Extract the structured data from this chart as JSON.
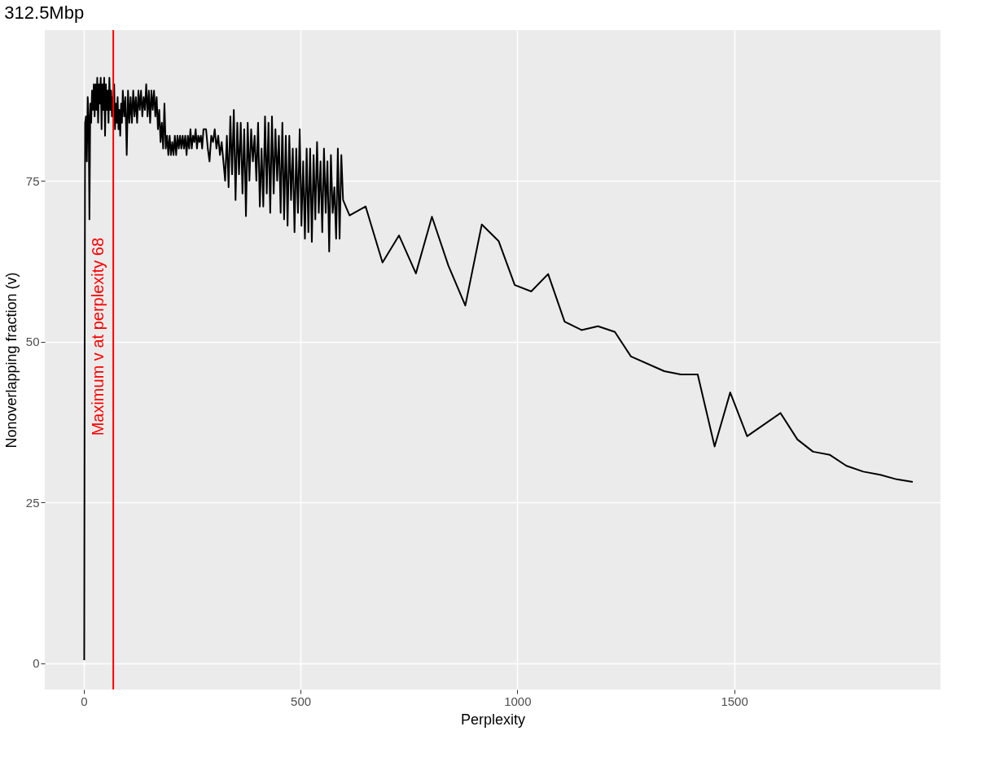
{
  "chart_data": {
    "type": "line",
    "title": "312.5Mbp",
    "xlabel": "Perplexity",
    "ylabel": "Nonoverlapping fraction (v)",
    "xlim": [
      -90,
      1976
    ],
    "ylim": [
      -4.05,
      98.4
    ],
    "xticks": [
      0,
      500,
      1000,
      1500
    ],
    "yticks": [
      0,
      25,
      50,
      75
    ],
    "grid": true,
    "line_style": "solid",
    "x": [
      1,
      2,
      3,
      5,
      7,
      9,
      11,
      13,
      15,
      17,
      19,
      21,
      23,
      25,
      27,
      29,
      31,
      33,
      35,
      37,
      39,
      41,
      43,
      45,
      47,
      49,
      51,
      53,
      55,
      57,
      59,
      61,
      63,
      65,
      67,
      68,
      70,
      72,
      74,
      76,
      78,
      80,
      82,
      84,
      86,
      88,
      90,
      93,
      96,
      99,
      102,
      105,
      108,
      111,
      114,
      117,
      120,
      123,
      126,
      129,
      132,
      135,
      138,
      141,
      144,
      147,
      150,
      153,
      156,
      159,
      162,
      165,
      168,
      171,
      174,
      177,
      180,
      183,
      186,
      189,
      192,
      195,
      198,
      201,
      204,
      207,
      210,
      213,
      216,
      219,
      222,
      225,
      228,
      231,
      234,
      237,
      240,
      243,
      246,
      249,
      252,
      255,
      258,
      261,
      264,
      267,
      270,
      273,
      276,
      282,
      286,
      290,
      294,
      298,
      302,
      306,
      310,
      314,
      318,
      322,
      326,
      330,
      334,
      338,
      342,
      346,
      350,
      354,
      358,
      362,
      366,
      370,
      374,
      378,
      382,
      386,
      390,
      394,
      398,
      402,
      406,
      410,
      414,
      418,
      422,
      426,
      430,
      434,
      438,
      442,
      446,
      450,
      454,
      458,
      462,
      466,
      470,
      474,
      478,
      482,
      486,
      490,
      494,
      498,
      502,
      506,
      510,
      514,
      518,
      522,
      526,
      530,
      534,
      538,
      542,
      546,
      550,
      554,
      558,
      562,
      566,
      570,
      574,
      578,
      582,
      586,
      590,
      594,
      598,
      613,
      650,
      689,
      727,
      766,
      803,
      841,
      880,
      918,
      957,
      994,
      1032,
      1071,
      1109,
      1148,
      1186,
      1225,
      1262,
      1339,
      1377,
      1416,
      1455,
      1491,
      1530,
      1607,
      1646,
      1682,
      1721,
      1759,
      1798,
      1837,
      1875,
      1912
    ],
    "series": [
      {
        "color": "#000000",
        "values": [
          0.5,
          50,
          84,
          85,
          78,
          88,
          85,
          69,
          87,
          84,
          89,
          86,
          90,
          85,
          90,
          86,
          91,
          84,
          90,
          87,
          91,
          83,
          90,
          86,
          91,
          82,
          90,
          86,
          89,
          84,
          91,
          86,
          89,
          85,
          88,
          86,
          90,
          83,
          87,
          84,
          88,
          83,
          86,
          82,
          87,
          84,
          89,
          85,
          88,
          79,
          89,
          84,
          88,
          84,
          89,
          85,
          88,
          84,
          89,
          86,
          89,
          85,
          88,
          86,
          90,
          85,
          89,
          84,
          89,
          86,
          89,
          85,
          88,
          83,
          86,
          81,
          84,
          80,
          87,
          80,
          82,
          79,
          82,
          79,
          81,
          79,
          82,
          79,
          82,
          80,
          82,
          80,
          82,
          80,
          82,
          79,
          82,
          80,
          83,
          80,
          82,
          81,
          83,
          80,
          82,
          81,
          82,
          80,
          83,
          83,
          80,
          78,
          82,
          81,
          83,
          80,
          82,
          79,
          81,
          78,
          75,
          82,
          74,
          85,
          76,
          86,
          72,
          84,
          76,
          84,
          73,
          83,
          69.5,
          84,
          75,
          83,
          78,
          82,
          75,
          84,
          71,
          80,
          71,
          85,
          73,
          84,
          70,
          85,
          73,
          83,
          75,
          82,
          70,
          84,
          69,
          82,
          68,
          82,
          72,
          80,
          67,
          80,
          70,
          83,
          68,
          78,
          66,
          80,
          67,
          80,
          65.5,
          79,
          69,
          81,
          70,
          78,
          67,
          80,
          70,
          78,
          64,
          79,
          70,
          74,
          66,
          80,
          66,
          79,
          72,
          69.6,
          71.0,
          62.3,
          66.5,
          60.6,
          69.4,
          61.8,
          55.6,
          68.2,
          65.6,
          58.8,
          57.8,
          60.5,
          53.1,
          51.8,
          52.4,
          51.5,
          47.7,
          45.4,
          44.9,
          44.9,
          33.7,
          42.1,
          35.3,
          38.9,
          34.8,
          32.9,
          32.4,
          30.7,
          29.8,
          29.3,
          28.6,
          28.2
        ]
      }
    ],
    "ref_lines": [
      {
        "axis": "x",
        "value": 68,
        "label": "Maximum v at perplexity  68",
        "color": "#ff0000",
        "line_style": "solid"
      }
    ]
  }
}
